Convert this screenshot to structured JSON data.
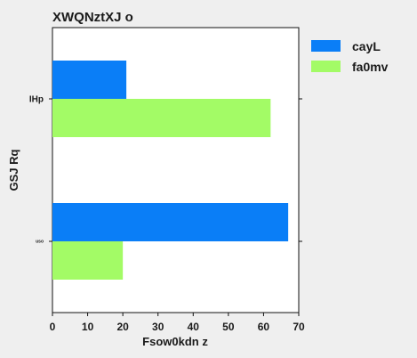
{
  "chart_data": {
    "type": "bar",
    "orientation": "horizontal",
    "title": "XWQNztXJ o",
    "xlabel": "Fsow0kdn z",
    "ylabel": "GSJ Rq",
    "categories": [
      "IHp",
      "uso"
    ],
    "category_label_sizes": [
      "normal",
      "tiny"
    ],
    "series": [
      {
        "name": "cayL",
        "color": "#0a7ef7",
        "values": [
          21,
          67
        ]
      },
      {
        "name": "fa0mv",
        "color": "#a3fb66",
        "values": [
          62,
          20
        ]
      }
    ],
    "xlim": [
      0,
      70
    ],
    "xticks": [
      0,
      10,
      20,
      30,
      40,
      50,
      60,
      70
    ],
    "grid": false,
    "legend_position": "right, outside plot, top"
  }
}
